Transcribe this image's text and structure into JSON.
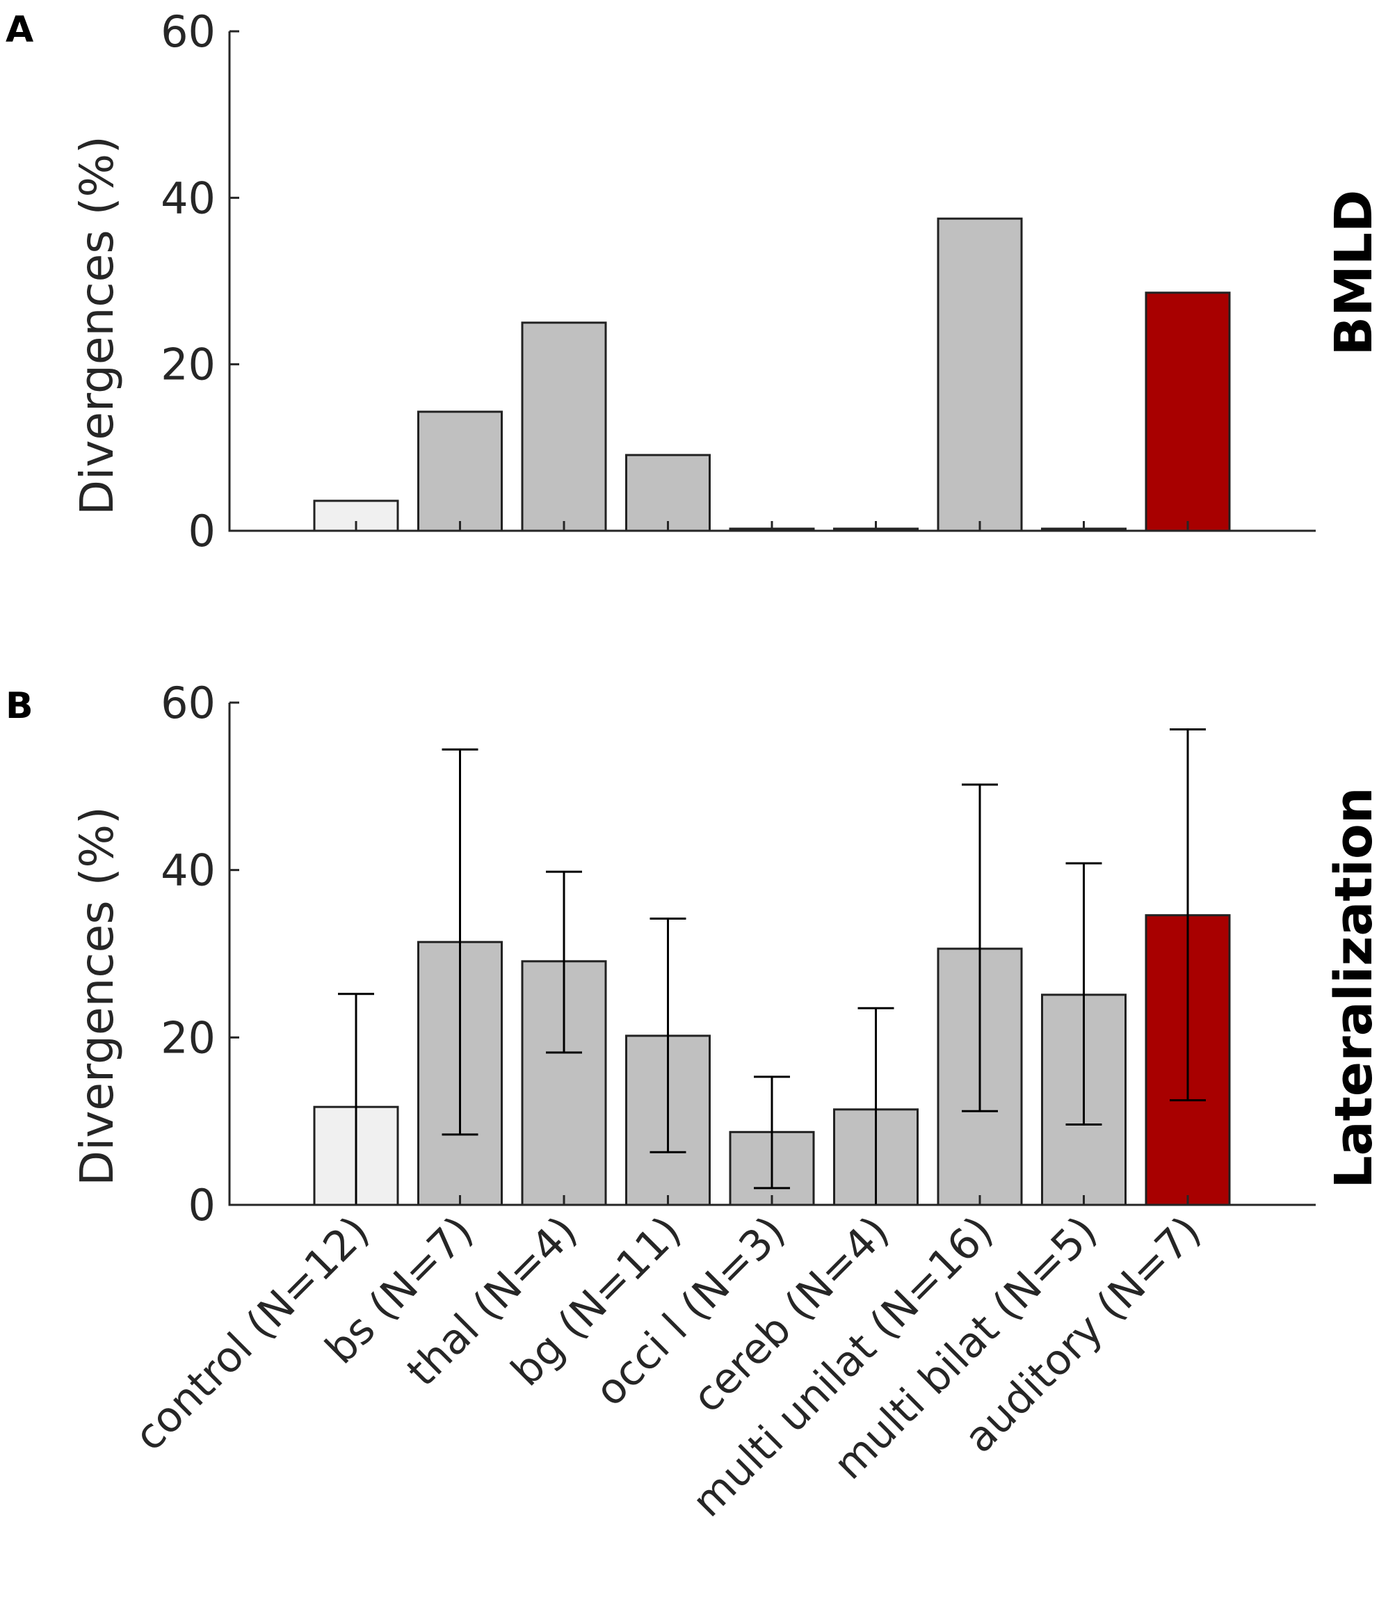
{
  "chart_data": [
    {
      "panel": "A",
      "type": "bar",
      "title": "BMLD",
      "ylabel": "Divergences (%)",
      "ylim": [
        0,
        60
      ],
      "yticks": [
        "0",
        "20",
        "40",
        "60"
      ],
      "categories": [
        "control (N=12)",
        "bs (N=7)",
        "thal (N=4)",
        "bg (N=11)",
        "occi l (N=3)",
        "cereb (N=4)",
        "multi unilat (N=16)",
        "multi bilat (N=5)",
        "auditory (N=7)"
      ],
      "values": [
        3.6,
        14.3,
        25.0,
        9.1,
        0,
        0,
        37.5,
        0,
        28.6
      ],
      "bar_colors": [
        "#f0f0f0",
        "#c0c0c0",
        "#c0c0c0",
        "#c0c0c0",
        "#c0c0c0",
        "#c0c0c0",
        "#c0c0c0",
        "#c0c0c0",
        "#a80000"
      ]
    },
    {
      "panel": "B",
      "type": "bar",
      "title": "Lateralization",
      "ylabel": "Divergences (%)",
      "ylim": [
        0,
        60
      ],
      "yticks": [
        "0",
        "20",
        "40",
        "60"
      ],
      "categories": [
        "control (N=12)",
        "bs (N=7)",
        "thal (N=4)",
        "bg (N=11)",
        "occi l (N=3)",
        "cereb (N=4)",
        "multi unilat (N=16)",
        "multi bilat (N=5)",
        "auditory (N=7)"
      ],
      "values": [
        11.7,
        31.4,
        29.1,
        20.2,
        8.7,
        11.4,
        30.6,
        25.1,
        34.6
      ],
      "err_low": [
        0,
        8.4,
        18.2,
        6.3,
        2.0,
        0,
        11.2,
        9.6,
        12.5
      ],
      "err_high": [
        25.2,
        54.4,
        39.8,
        34.2,
        15.3,
        23.5,
        50.2,
        40.8,
        56.8
      ],
      "bar_colors": [
        "#f0f0f0",
        "#c0c0c0",
        "#c0c0c0",
        "#c0c0c0",
        "#c0c0c0",
        "#c0c0c0",
        "#c0c0c0",
        "#c0c0c0",
        "#a80000"
      ]
    }
  ]
}
